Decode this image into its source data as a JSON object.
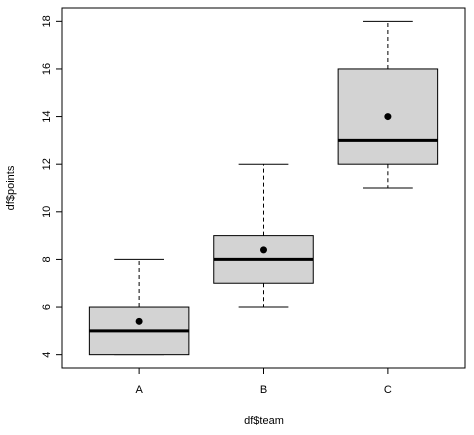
{
  "chart_data": {
    "type": "box",
    "x_label": "df$team",
    "y_label": "df$points",
    "categories": [
      "A",
      "B",
      "C"
    ],
    "boxes": [
      {
        "min": 4,
        "q1": 4,
        "median": 5,
        "q3": 6,
        "max": 8,
        "mean": 5.4
      },
      {
        "min": 6,
        "q1": 7,
        "median": 8,
        "q3": 9,
        "max": 12,
        "mean": 8.4
      },
      {
        "min": 11,
        "q1": 12,
        "median": 13,
        "q3": 16,
        "max": 18,
        "mean": 14
      }
    ],
    "color": "#d3d3d3",
    "ylim": [
      3.44,
      18.56
    ],
    "yticks": [
      4,
      6,
      8,
      10,
      12,
      14,
      16,
      18
    ]
  }
}
